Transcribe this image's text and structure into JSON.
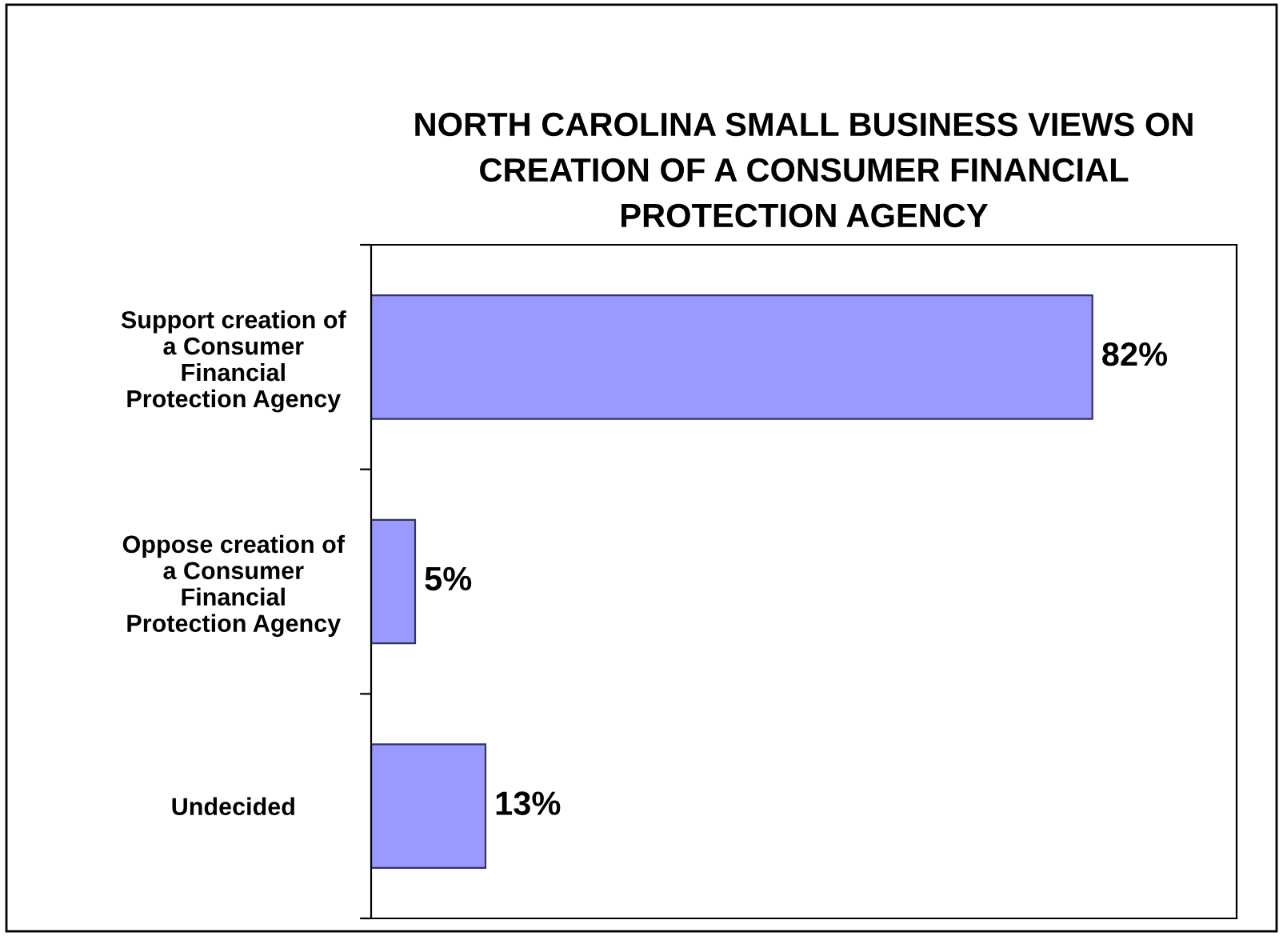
{
  "chart_data": {
    "type": "bar",
    "orientation": "horizontal",
    "title": "NORTH CAROLINA SMALL BUSINESS VIEWS ON\nCREATION OF A CONSUMER FINANCIAL\nPROTECTION AGENCY",
    "categories": [
      "Support creation of\na Consumer\nFinancial\nProtection Agency",
      "Oppose creation of\na Consumer\nFinancial\nProtection Agency",
      "Undecided"
    ],
    "values": [
      82,
      5,
      13
    ],
    "color": "#9999ff",
    "data_labels": true,
    "value_labels": [
      "82%",
      "5%",
      "13%"
    ],
    "grid": false,
    "legend": false
  }
}
